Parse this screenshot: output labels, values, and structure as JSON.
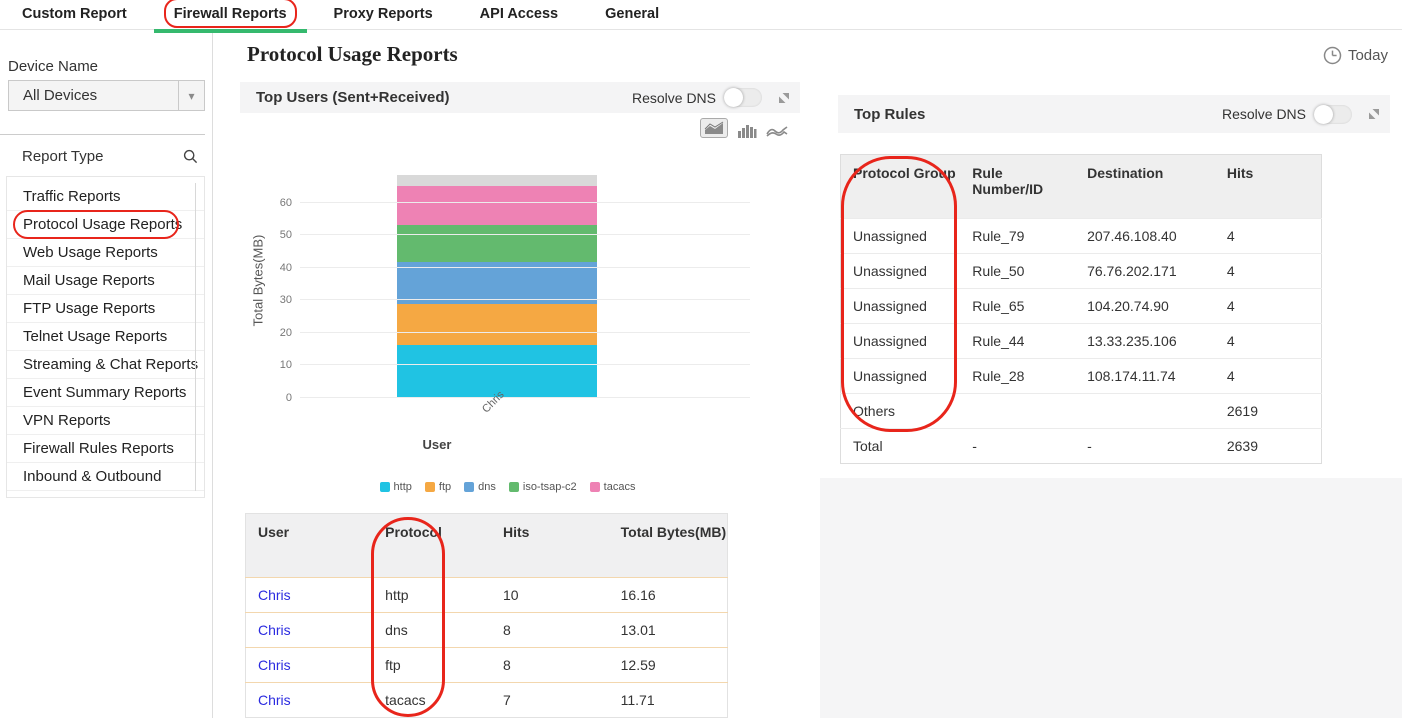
{
  "tabs": {
    "items": [
      {
        "label": "Custom Report",
        "active": false
      },
      {
        "label": "Firewall Reports",
        "active": true,
        "annotated": true
      },
      {
        "label": "Proxy Reports",
        "active": false
      },
      {
        "label": "API Access",
        "active": false
      },
      {
        "label": "General",
        "active": false
      }
    ]
  },
  "sidebar": {
    "device_name_label": "Device Name",
    "device_select_value": "All Devices",
    "report_type_label": "Report Type",
    "report_types": [
      {
        "label": "Traffic Reports"
      },
      {
        "label": "Protocol Usage Reports",
        "annotated": true
      },
      {
        "label": "Web Usage Reports"
      },
      {
        "label": "Mail Usage Reports"
      },
      {
        "label": "FTP Usage Reports"
      },
      {
        "label": "Telnet Usage Reports"
      },
      {
        "label": "Streaming & Chat Reports"
      },
      {
        "label": "Event Summary Reports"
      },
      {
        "label": "VPN Reports"
      },
      {
        "label": "Firewall Rules Reports"
      },
      {
        "label": "Inbound & Outbound"
      }
    ]
  },
  "header": {
    "title": "Protocol Usage Reports",
    "date_range": "Today"
  },
  "top_users_panel": {
    "title": "Top Users (Sent+Received)",
    "resolve_dns_label": "Resolve DNS",
    "table": {
      "columns": [
        "User",
        "Protocol",
        "Hits",
        "Total Bytes(MB)"
      ],
      "rows": [
        [
          "Chris",
          "http",
          "10",
          "16.16"
        ],
        [
          "Chris",
          "dns",
          "8",
          "13.01"
        ],
        [
          "Chris",
          "ftp",
          "8",
          "12.59"
        ],
        [
          "Chris",
          "tacacs",
          "7",
          "11.71"
        ]
      ]
    }
  },
  "chart_data": {
    "type": "bar",
    "stacked": true,
    "title": "Top Users (Sent+Received)",
    "categories": [
      "Chris"
    ],
    "series": [
      {
        "name": "http",
        "values": [
          16.16
        ],
        "color": "#20c3e3"
      },
      {
        "name": "ftp",
        "values": [
          12.59
        ],
        "color": "#f5a843"
      },
      {
        "name": "dns",
        "values": [
          13.01
        ],
        "color": "#64a3d8"
      },
      {
        "name": "iso-tsap-c2",
        "values": [
          11.5
        ],
        "color": "#63ba6e"
      },
      {
        "name": "tacacs",
        "values": [
          11.71
        ],
        "color": "#ee82b4"
      },
      {
        "name": "other",
        "values": [
          3.6
        ],
        "color": "#d9d9d9",
        "in_legend": false
      }
    ],
    "xlabel": "User",
    "ylabel": "Total Bytes(MB)",
    "yticks": [
      0,
      10,
      20,
      30,
      40,
      50,
      60
    ],
    "ylim": [
      0,
      70
    ],
    "grid": true,
    "legend": [
      "http",
      "ftp",
      "dns",
      "iso-tsap-c2",
      "tacacs"
    ],
    "legend_position": "bottom"
  },
  "top_rules_panel": {
    "title": "Top Rules",
    "resolve_dns_label": "Resolve DNS",
    "table": {
      "columns": [
        "Protocol Group",
        "Rule Number/ID",
        "Destination",
        "Hits"
      ],
      "rows": [
        [
          "Unassigned",
          "Rule_79",
          "207.46.108.40",
          "4"
        ],
        [
          "Unassigned",
          "Rule_50",
          "76.76.202.171",
          "4"
        ],
        [
          "Unassigned",
          "Rule_65",
          "104.20.74.90",
          "4"
        ],
        [
          "Unassigned",
          "Rule_44",
          "13.33.235.106",
          "4"
        ],
        [
          "Unassigned",
          "Rule_28",
          "108.174.11.74",
          "4"
        ],
        [
          "Others",
          "",
          "",
          "2619"
        ],
        [
          "Total",
          "-",
          "-",
          "2639"
        ]
      ]
    }
  },
  "icons": {
    "select_caret_glyph": "▾"
  },
  "annotations": {
    "color": "#e8251b",
    "targets": [
      "firewall-reports-tab",
      "protocol-usage-reports-item",
      "protocol-column",
      "protocol-group-column"
    ]
  },
  "colors": {
    "active_tab_underline": "#35b96e",
    "link": "#2b2be0",
    "panel_header_bg": "#f4f4f5",
    "table_header_bg": "#efefef",
    "users_row_border": "#f3d7ae",
    "rules_row_border": "#ebebeb"
  }
}
